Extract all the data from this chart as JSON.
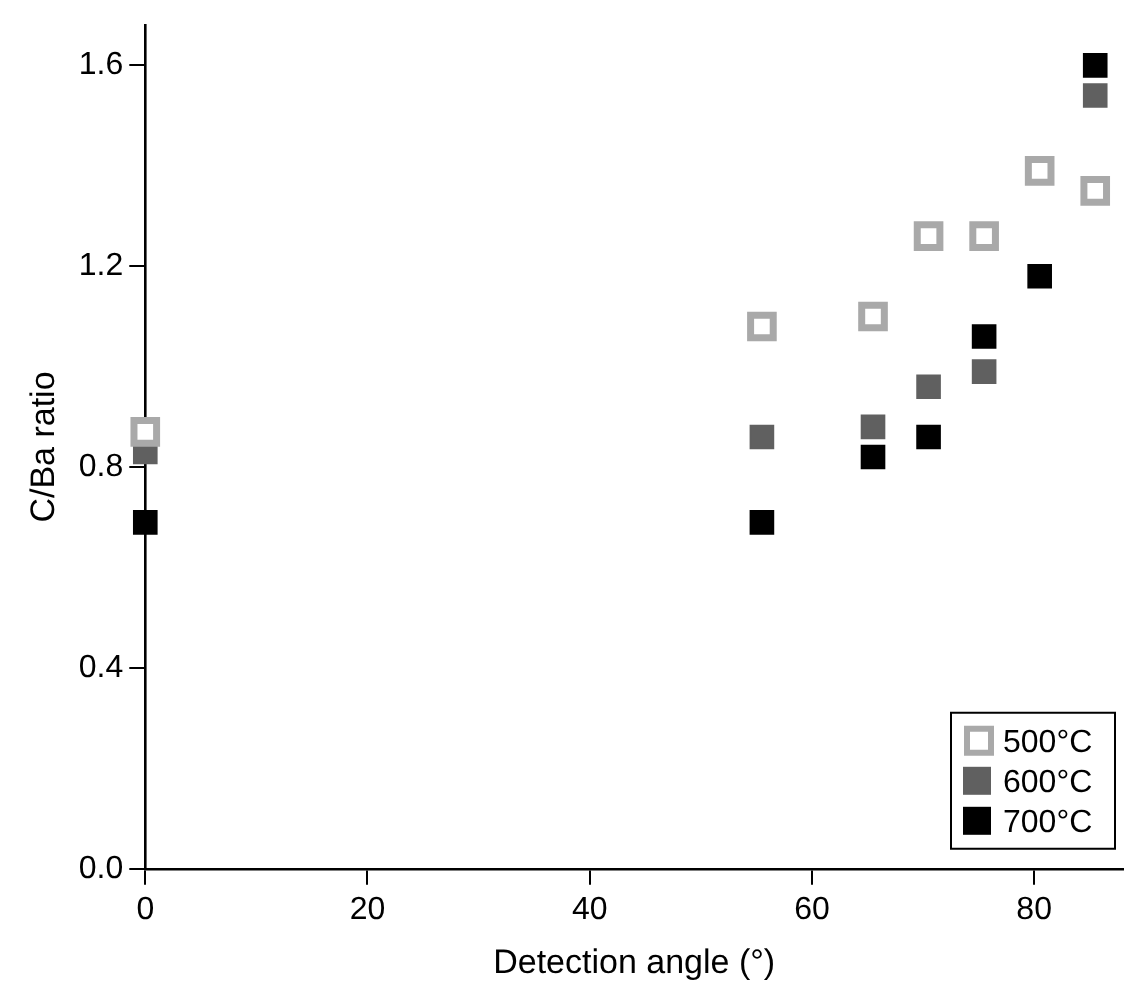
{
  "chart_data": {
    "type": "scatter",
    "xlabel": "Detection angle (°)",
    "ylabel": "C/Ba ratio",
    "xlim": [
      0,
      88
    ],
    "xticks": [
      0,
      20,
      40,
      60,
      80
    ],
    "ylim": [
      0,
      1.68
    ],
    "yticks": [
      {
        "value": 0,
        "label": "0.0"
      },
      {
        "value": 0.4,
        "label": "0.4"
      },
      {
        "value": 0.8,
        "label": "0.8"
      },
      {
        "value": 1.2,
        "label": "1.2"
      },
      {
        "value": 1.6,
        "label": "1.6"
      }
    ],
    "grid": false,
    "legend": "bottom right",
    "marker": "square",
    "series": [
      {
        "name": "500°C",
        "color": "#a9a9a9",
        "x": [
          0,
          55.5,
          65.5,
          70.5,
          75.5,
          80.5,
          85.5
        ],
        "values": [
          0.87,
          1.08,
          1.1,
          1.26,
          1.26,
          1.39,
          1.35
        ]
      },
      {
        "name": "600°C",
        "color": "#606060",
        "x": [
          0,
          55.5,
          65.5,
          70.5,
          75.5,
          85.5
        ],
        "values": [
          0.83,
          0.86,
          0.88,
          0.96,
          0.99,
          1.54
        ]
      },
      {
        "name": "700°C",
        "color": "#000000",
        "x": [
          0,
          55.5,
          65.5,
          70.5,
          75.5,
          80.5,
          85.5
        ],
        "values": [
          0.69,
          0.69,
          0.82,
          0.86,
          1.06,
          1.18,
          1.6
        ]
      }
    ]
  }
}
